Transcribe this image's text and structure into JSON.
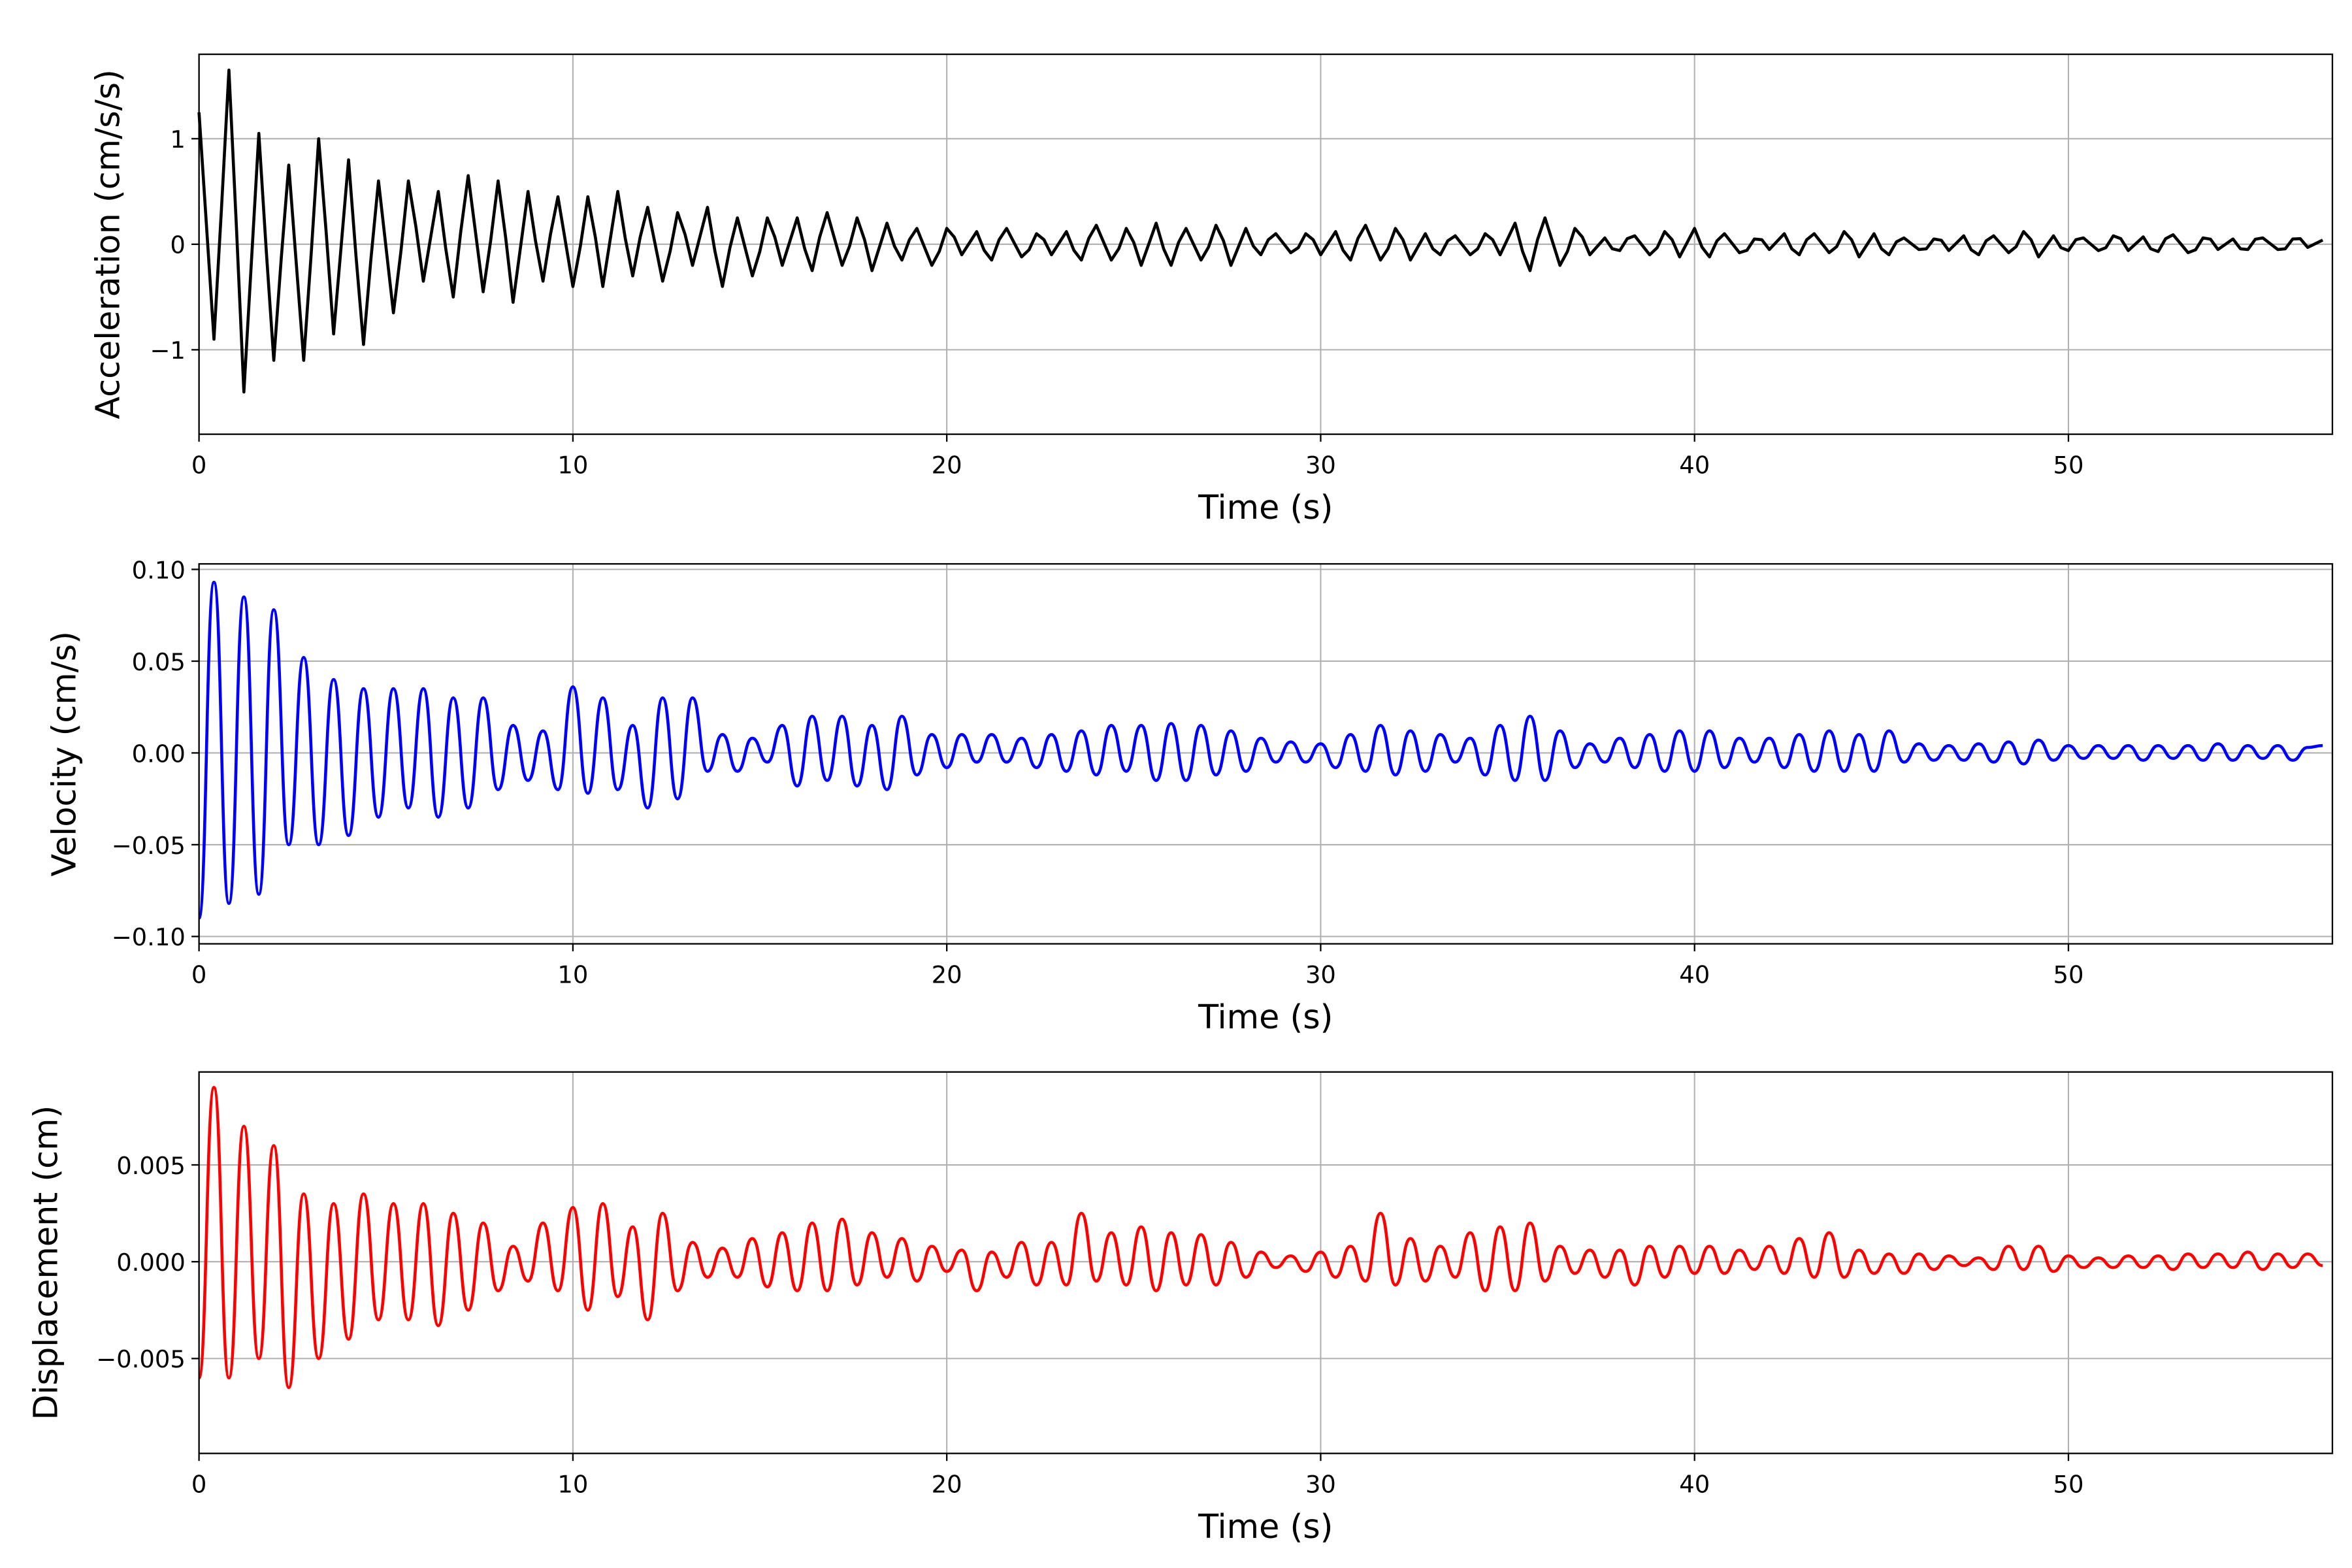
{
  "chart_data": [
    {
      "type": "line",
      "title": "",
      "xlabel": "Time (s)",
      "ylabel": "Acceleration (cm/s/s)",
      "color": "#000000",
      "xlim": [
        0,
        57.06
      ],
      "ylim": [
        -1.8,
        1.8
      ],
      "xticks": [
        0,
        10,
        20,
        30,
        40,
        50
      ],
      "xtick_labels": [
        "0",
        "10",
        "20",
        "30",
        "40",
        "50"
      ],
      "yticks": [
        -1,
        0,
        1
      ],
      "ytick_labels": [
        "−1",
        "0",
        "1"
      ],
      "grid": true,
      "x_step": 0.4,
      "values": [
        1.25,
        -0.9,
        1.65,
        -1.4,
        1.05,
        -1.1,
        0.75,
        -1.1,
        1.0,
        -0.85,
        0.8,
        -0.95,
        0.6,
        -0.65,
        0.6,
        -0.35,
        0.5,
        -0.5,
        0.65,
        -0.45,
        0.6,
        -0.55,
        0.5,
        -0.35,
        0.45,
        -0.4,
        0.45,
        -0.4,
        0.5,
        -0.3,
        0.35,
        -0.35,
        0.3,
        -0.2,
        0.35,
        -0.4,
        0.25,
        -0.3,
        0.25,
        -0.2,
        0.25,
        -0.25,
        0.3,
        -0.2,
        0.25,
        -0.25,
        0.2,
        -0.15,
        0.15,
        -0.2,
        0.15,
        -0.1,
        0.12,
        -0.15,
        0.15,
        -0.12,
        0.1,
        -0.1,
        0.12,
        -0.15,
        0.18,
        -0.15,
        0.15,
        -0.2,
        0.2,
        -0.2,
        0.15,
        -0.15,
        0.18,
        -0.2,
        0.15,
        -0.1,
        0.1,
        -0.08,
        0.1,
        -0.1,
        0.12,
        -0.15,
        0.18,
        -0.15,
        0.15,
        -0.15,
        0.1,
        -0.1,
        0.08,
        -0.1,
        0.1,
        -0.1,
        0.2,
        -0.25,
        0.25,
        -0.2,
        0.15,
        -0.1,
        0.06,
        -0.06,
        0.08,
        -0.1,
        0.12,
        -0.12,
        0.15,
        -0.12,
        0.1,
        -0.08,
        0.05,
        -0.05,
        0.1,
        -0.1,
        0.1,
        -0.08,
        0.12,
        -0.12,
        0.1,
        -0.1,
        0.06,
        -0.05,
        0.05,
        -0.06,
        0.08,
        -0.1,
        0.08,
        -0.08,
        0.12,
        -0.12,
        0.08,
        -0.06,
        0.06,
        -0.06,
        0.08,
        -0.06,
        0.07,
        -0.07,
        0.09,
        -0.08,
        0.06,
        -0.05,
        0.05,
        -0.05,
        0.06,
        -0.05,
        0.05,
        -0.03,
        0.04
      ]
    },
    {
      "type": "line",
      "title": "",
      "xlabel": "Time (s)",
      "ylabel": "Velocity (cm/s)",
      "color": "#0000ff",
      "xlim": [
        0,
        57.06
      ],
      "ylim": [
        -0.104,
        0.103
      ],
      "xticks": [
        0,
        10,
        20,
        30,
        40,
        50
      ],
      "xtick_labels": [
        "0",
        "10",
        "20",
        "30",
        "40",
        "50"
      ],
      "yticks": [
        -0.1,
        -0.05,
        0,
        0.05,
        0.1
      ],
      "ytick_labels": [
        "−0.10",
        "−0.05",
        "0.00",
        "0.05",
        "0.10"
      ],
      "grid": true,
      "x_step": 0.4,
      "values": [
        -0.09,
        0.093,
        -0.082,
        0.085,
        -0.077,
        0.078,
        -0.05,
        0.052,
        -0.05,
        0.04,
        -0.045,
        0.035,
        -0.035,
        0.035,
        -0.03,
        0.035,
        -0.035,
        0.03,
        -0.03,
        0.03,
        -0.02,
        0.015,
        -0.015,
        0.012,
        -0.02,
        0.036,
        -0.022,
        0.03,
        -0.02,
        0.015,
        -0.03,
        0.03,
        -0.025,
        0.03,
        -0.01,
        0.01,
        -0.01,
        0.008,
        -0.005,
        0.015,
        -0.018,
        0.02,
        -0.015,
        0.02,
        -0.018,
        0.015,
        -0.02,
        0.02,
        -0.012,
        0.01,
        -0.008,
        0.01,
        -0.005,
        0.01,
        -0.005,
        0.008,
        -0.008,
        0.01,
        -0.01,
        0.012,
        -0.012,
        0.015,
        -0.01,
        0.015,
        -0.015,
        0.016,
        -0.015,
        0.015,
        -0.012,
        0.012,
        -0.01,
        0.008,
        -0.005,
        0.006,
        -0.005,
        0.005,
        -0.008,
        0.01,
        -0.01,
        0.015,
        -0.012,
        0.012,
        -0.01,
        0.01,
        -0.005,
        0.008,
        -0.012,
        0.015,
        -0.015,
        0.02,
        -0.015,
        0.012,
        -0.008,
        0.005,
        -0.005,
        0.008,
        -0.008,
        0.01,
        -0.01,
        0.012,
        -0.01,
        0.012,
        -0.008,
        0.008,
        -0.005,
        0.008,
        -0.008,
        0.01,
        -0.01,
        0.012,
        -0.01,
        0.01,
        -0.01,
        0.012,
        -0.005,
        0.005,
        -0.004,
        0.004,
        -0.004,
        0.005,
        -0.005,
        0.006,
        -0.006,
        0.007,
        -0.004,
        0.004,
        -0.003,
        0.004,
        -0.003,
        0.004,
        -0.004,
        0.004,
        -0.003,
        0.004,
        -0.004,
        0.005,
        -0.004,
        0.004,
        -0.003,
        0.004,
        -0.004,
        0.003,
        0.004
      ]
    },
    {
      "type": "line",
      "title": "",
      "xlabel": "Time (s)",
      "ylabel": "Displacement (cm)",
      "color": "#ff0000",
      "xlim": [
        0,
        57.06
      ],
      "ylim": [
        -0.0099,
        0.0098
      ],
      "xticks": [
        0,
        10,
        20,
        30,
        40,
        50
      ],
      "xtick_labels": [
        "0",
        "10",
        "20",
        "30",
        "40",
        "50"
      ],
      "yticks": [
        -0.005,
        0,
        0.005
      ],
      "ytick_labels": [
        "−0.005",
        "0.000",
        "0.005"
      ],
      "grid": true,
      "x_step": 0.4,
      "values": [
        -0.006,
        0.009,
        -0.006,
        0.007,
        -0.005,
        0.006,
        -0.0065,
        0.0035,
        -0.005,
        0.003,
        -0.004,
        0.0035,
        -0.003,
        0.003,
        -0.003,
        0.003,
        -0.0033,
        0.0025,
        -0.0025,
        0.002,
        -0.0015,
        0.0008,
        -0.001,
        0.002,
        -0.0015,
        0.0028,
        -0.0025,
        0.003,
        -0.0018,
        0.0018,
        -0.003,
        0.0025,
        -0.0015,
        0.001,
        -0.0008,
        0.0007,
        -0.0008,
        0.0012,
        -0.0013,
        0.0015,
        -0.0015,
        0.002,
        -0.0015,
        0.0022,
        -0.0012,
        0.0015,
        -0.0008,
        0.0012,
        -0.001,
        0.0008,
        -0.0005,
        0.0006,
        -0.0015,
        0.0005,
        -0.0008,
        0.001,
        -0.0012,
        0.001,
        -0.0012,
        0.0025,
        -0.001,
        0.0015,
        -0.0012,
        0.0018,
        -0.0015,
        0.0015,
        -0.0012,
        0.0014,
        -0.0012,
        0.001,
        -0.0008,
        0.0005,
        -0.0003,
        0.0003,
        -0.0005,
        0.0005,
        -0.0008,
        0.0008,
        -0.001,
        0.0025,
        -0.0012,
        0.0012,
        -0.001,
        0.0008,
        -0.0008,
        0.0015,
        -0.0015,
        0.0018,
        -0.0015,
        0.002,
        -0.001,
        0.0008,
        -0.0006,
        0.0006,
        -0.0008,
        0.0006,
        -0.0012,
        0.0008,
        -0.0008,
        0.0008,
        -0.0006,
        0.0008,
        -0.0006,
        0.0006,
        -0.0004,
        0.0008,
        -0.0006,
        0.0012,
        -0.0008,
        0.0015,
        -0.0008,
        0.0006,
        -0.0006,
        0.0004,
        -0.0006,
        0.0004,
        -0.0004,
        0.0003,
        -0.0002,
        0.0002,
        -0.0004,
        0.0008,
        -0.0004,
        0.0008,
        -0.0005,
        0.0003,
        -0.0003,
        0.0002,
        -0.0003,
        0.0003,
        -0.0003,
        0.0003,
        -0.0004,
        0.0004,
        -0.0003,
        0.0004,
        -0.0003,
        0.0005,
        -0.0004,
        0.0004,
        -0.0003,
        0.0004,
        -0.0002
      ]
    }
  ]
}
